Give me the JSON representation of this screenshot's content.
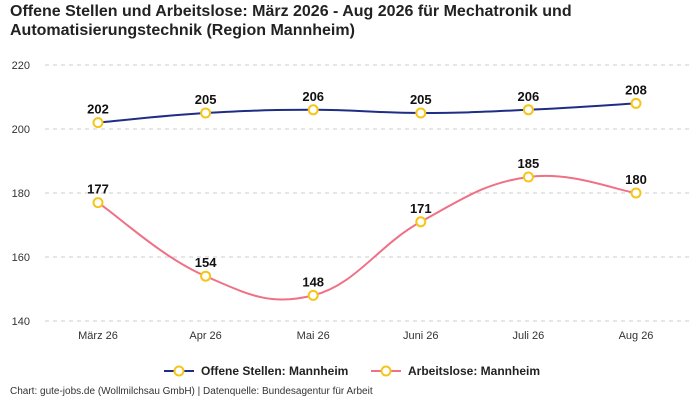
{
  "chart_data": {
    "type": "line",
    "title": "Offene Stellen und Arbeitslose: März 2026 - Aug 2026 für Mechatronik und Automatisierungstechnik (Region Mannheim)",
    "categories": [
      "März 26",
      "Apr 26",
      "Mai 26",
      "Juni 26",
      "Juli 26",
      "Aug 26"
    ],
    "ylim": [
      140,
      220
    ],
    "yticks": [
      140,
      160,
      180,
      200,
      220
    ],
    "grid": true,
    "legend_position": "bottom",
    "series": [
      {
        "name": "Offene Stellen: Mannheim",
        "color": "#1f2d86",
        "values": [
          202,
          205,
          206,
          205,
          206,
          208
        ]
      },
      {
        "name": "Arbeitslose: Mannheim",
        "color": "#f07085",
        "values": [
          177,
          154,
          148,
          171,
          185,
          180
        ]
      }
    ],
    "marker_color": "#f5c518"
  },
  "footer": "Chart: gute-jobs.de (Wollmilchsau GmbH) | Datenquelle: Bundesagentur für Arbeit"
}
